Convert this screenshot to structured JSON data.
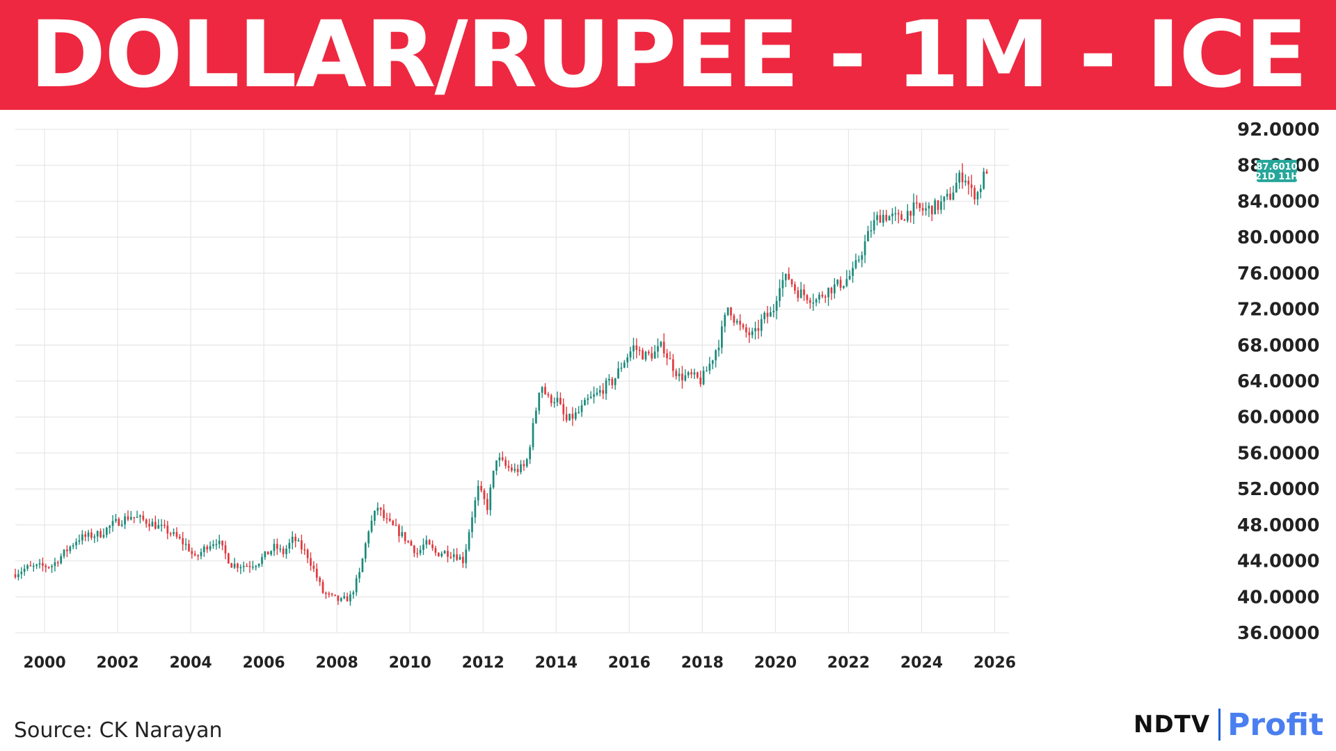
{
  "title": "DOLLAR/RUPEE - 1M - ICE",
  "source": "Source: CK Narayan",
  "logo": {
    "left": "NDTV",
    "right": "Profit"
  },
  "colors": {
    "banner": "#ee2841",
    "up": "#1a8a7a",
    "down": "#e0393e",
    "badge": "#26a69a",
    "grid": "#e6e6e6"
  },
  "chart_data": {
    "type": "candlestick",
    "title": "",
    "xlabel": "",
    "ylabel": "",
    "x_ticks": [
      "2000",
      "2002",
      "2004",
      "2006",
      "2008",
      "2010",
      "2012",
      "2014",
      "2016",
      "2018",
      "2020",
      "2022",
      "2024",
      "2026"
    ],
    "y_ticks": [
      "36.0000",
      "40.0000",
      "44.0000",
      "48.0000",
      "52.0000",
      "56.0000",
      "60.0000",
      "64.0000",
      "68.0000",
      "72.0000",
      "76.0000",
      "80.0000",
      "84.0000",
      "88.0000",
      "92.0000"
    ],
    "ylim": [
      36,
      92
    ],
    "xlim": [
      1999.2,
      2026.2
    ],
    "grid": true,
    "interval": "1M",
    "current_price": {
      "value": "87.6010",
      "countdown": "21D 11H"
    },
    "series_anchors": [
      [
        1999.2,
        42.5
      ],
      [
        1999.6,
        43.2
      ],
      [
        2000.3,
        43.5
      ],
      [
        2000.6,
        44.8
      ],
      [
        2001.0,
        46.5
      ],
      [
        2001.6,
        47.0
      ],
      [
        2002.0,
        48.2
      ],
      [
        2002.45,
        49.0
      ],
      [
        2003.0,
        48.2
      ],
      [
        2003.5,
        47.2
      ],
      [
        2004.0,
        45.6
      ],
      [
        2004.2,
        44.2
      ],
      [
        2004.55,
        45.8
      ],
      [
        2004.8,
        46.3
      ],
      [
        2005.2,
        43.6
      ],
      [
        2005.6,
        43.5
      ],
      [
        2005.9,
        43.8
      ],
      [
        2006.4,
        45.6
      ],
      [
        2006.6,
        44.8
      ],
      [
        2006.9,
        46.5
      ],
      [
        2007.3,
        44.5
      ],
      [
        2007.7,
        40.5
      ],
      [
        2007.9,
        40.0
      ],
      [
        2008.2,
        39.5
      ],
      [
        2008.45,
        40.0
      ],
      [
        2008.7,
        42.5
      ],
      [
        2008.95,
        47.5
      ],
      [
        2009.2,
        50.0
      ],
      [
        2009.4,
        48.5
      ],
      [
        2009.7,
        47.5
      ],
      [
        2010.0,
        46.3
      ],
      [
        2010.3,
        44.8
      ],
      [
        2010.5,
        46.0
      ],
      [
        2010.8,
        44.8
      ],
      [
        2011.0,
        45.0
      ],
      [
        2011.3,
        44.8
      ],
      [
        2011.55,
        44.0
      ],
      [
        2011.75,
        48.5
      ],
      [
        2011.95,
        52.0
      ],
      [
        2012.2,
        50.0
      ],
      [
        2012.45,
        55.5
      ],
      [
        2012.7,
        54.5
      ],
      [
        2012.95,
        54.0
      ],
      [
        2013.25,
        54.5
      ],
      [
        2013.5,
        60.0
      ],
      [
        2013.65,
        64.0
      ],
      [
        2013.85,
        62.0
      ],
      [
        2014.1,
        62.0
      ],
      [
        2014.35,
        59.5
      ],
      [
        2014.7,
        60.5
      ],
      [
        2014.95,
        61.8
      ],
      [
        2015.2,
        62.5
      ],
      [
        2015.45,
        63.5
      ],
      [
        2015.65,
        64.0
      ],
      [
        2015.9,
        66.0
      ],
      [
        2016.2,
        67.8
      ],
      [
        2016.5,
        66.8
      ],
      [
        2016.75,
        67.0
      ],
      [
        2017.0,
        68.0
      ],
      [
        2017.15,
        66.5
      ],
      [
        2017.45,
        64.5
      ],
      [
        2017.8,
        64.5
      ],
      [
        2018.05,
        64.0
      ],
      [
        2018.3,
        66.0
      ],
      [
        2018.55,
        68.5
      ],
      [
        2018.8,
        72.5
      ],
      [
        2018.95,
        71.0
      ],
      [
        2019.2,
        69.5
      ],
      [
        2019.5,
        69.0
      ],
      [
        2019.75,
        71.0
      ],
      [
        2020.0,
        71.5
      ],
      [
        2020.2,
        75.0
      ],
      [
        2020.45,
        75.5
      ],
      [
        2020.65,
        74.0
      ],
      [
        2020.95,
        73.5
      ],
      [
        2021.2,
        73.0
      ],
      [
        2021.45,
        74.0
      ],
      [
        2021.7,
        74.5
      ],
      [
        2021.95,
        75.0
      ],
      [
        2022.2,
        76.0
      ],
      [
        2022.45,
        78.5
      ],
      [
        2022.7,
        81.0
      ],
      [
        2022.85,
        82.0
      ],
      [
        2023.0,
        82.5
      ],
      [
        2023.5,
        82.0
      ],
      [
        2023.8,
        83.2
      ],
      [
        2024.15,
        83.0
      ],
      [
        2024.55,
        83.5
      ],
      [
        2024.85,
        84.5
      ],
      [
        2025.1,
        86.5
      ],
      [
        2025.25,
        87.0
      ],
      [
        2025.45,
        85.0
      ],
      [
        2025.6,
        84.8
      ],
      [
        2025.72,
        86.0
      ],
      [
        2025.85,
        87.6
      ]
    ]
  }
}
